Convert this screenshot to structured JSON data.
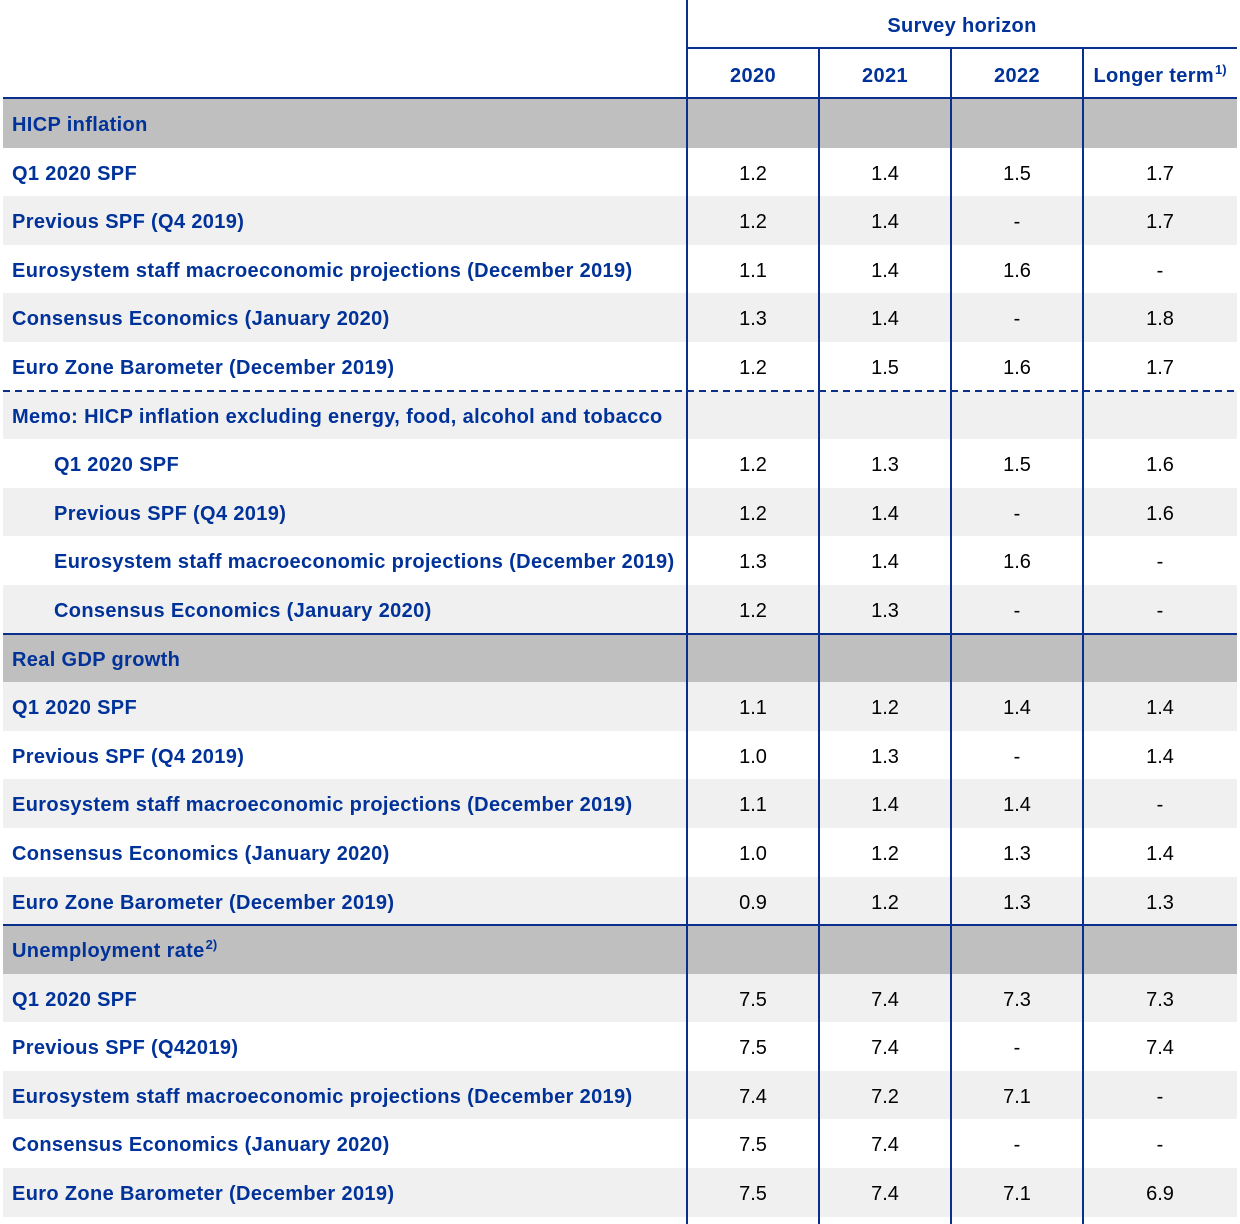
{
  "table": {
    "header": {
      "group_label": "Survey horizon",
      "columns": [
        {
          "label": "2020"
        },
        {
          "label": "2021"
        },
        {
          "label": "2022"
        },
        {
          "label": "Longer term",
          "footnote": "1)"
        }
      ]
    },
    "sections": [
      {
        "title": "HICP inflation",
        "rows": [
          {
            "label": "Q1 2020 SPF",
            "values": [
              "1.2",
              "1.4",
              "1.5",
              "1.7"
            ]
          },
          {
            "label": "Previous SPF (Q4 2019)",
            "values": [
              "1.2",
              "1.4",
              "-",
              "1.7"
            ]
          },
          {
            "label": "Eurosystem staff macroeconomic projections (December 2019)",
            "values": [
              "1.1",
              "1.4",
              "1.6",
              "-"
            ]
          },
          {
            "label": "Consensus Economics (January 2020)",
            "values": [
              "1.3",
              "1.4",
              "-",
              "1.8"
            ]
          },
          {
            "label": "Euro Zone Barometer (December 2019)",
            "values": [
              "1.2",
              "1.5",
              "1.6",
              "1.7"
            ]
          }
        ],
        "memo": {
          "title": "Memo: HICP inflation excluding energy, food, alcohol and tobacco",
          "rows": [
            {
              "label": "Q1 2020 SPF",
              "values": [
                "1.2",
                "1.3",
                "1.5",
                "1.6"
              ]
            },
            {
              "label": "Previous SPF (Q4 2019)",
              "values": [
                "1.2",
                "1.4",
                "-",
                "1.6"
              ]
            },
            {
              "label": "Eurosystem staff macroeconomic projections (December 2019)",
              "values": [
                "1.3",
                "1.4",
                "1.6",
                "-"
              ]
            },
            {
              "label": "Consensus Economics (January 2020)",
              "values": [
                "1.2",
                "1.3",
                "-",
                "-"
              ]
            }
          ]
        }
      },
      {
        "title": "Real GDP growth",
        "rows": [
          {
            "label": "Q1 2020 SPF",
            "values": [
              "1.1",
              "1.2",
              "1.4",
              "1.4"
            ]
          },
          {
            "label": "Previous SPF (Q4 2019)",
            "values": [
              "1.0",
              "1.3",
              "-",
              "1.4"
            ]
          },
          {
            "label": "Eurosystem staff macroeconomic projections (December 2019)",
            "values": [
              "1.1",
              "1.4",
              "1.4",
              "-"
            ]
          },
          {
            "label": "Consensus Economics (January 2020)",
            "values": [
              "1.0",
              "1.2",
              "1.3",
              "1.4"
            ]
          },
          {
            "label": "Euro Zone Barometer (December 2019)",
            "values": [
              "0.9",
              "1.2",
              "1.3",
              "1.3"
            ]
          }
        ]
      },
      {
        "title": "Unemployment rate",
        "footnote": "2)",
        "rows": [
          {
            "label": "Q1 2020 SPF",
            "values": [
              "7.5",
              "7.4",
              "7.3",
              "7.3"
            ]
          },
          {
            "label": "Previous SPF (Q42019)",
            "values": [
              "7.5",
              "7.4",
              "-",
              "7.4"
            ]
          },
          {
            "label": "Eurosystem staff macroeconomic projections (December 2019)",
            "values": [
              "7.4",
              "7.2",
              "7.1",
              "-"
            ]
          },
          {
            "label": "Consensus Economics (January 2020)",
            "values": [
              "7.5",
              "7.4",
              "-",
              "-"
            ]
          },
          {
            "label": "Euro Zone Barometer (December 2019)",
            "values": [
              "7.5",
              "7.4",
              "7.1",
              "6.9"
            ]
          }
        ]
      }
    ]
  },
  "colors": {
    "label_text": "#003299",
    "value_text": "#000000",
    "rule": "#0a2f8c",
    "section_band": "#bfbfbf",
    "row_stripe": "#f0f0f0"
  }
}
